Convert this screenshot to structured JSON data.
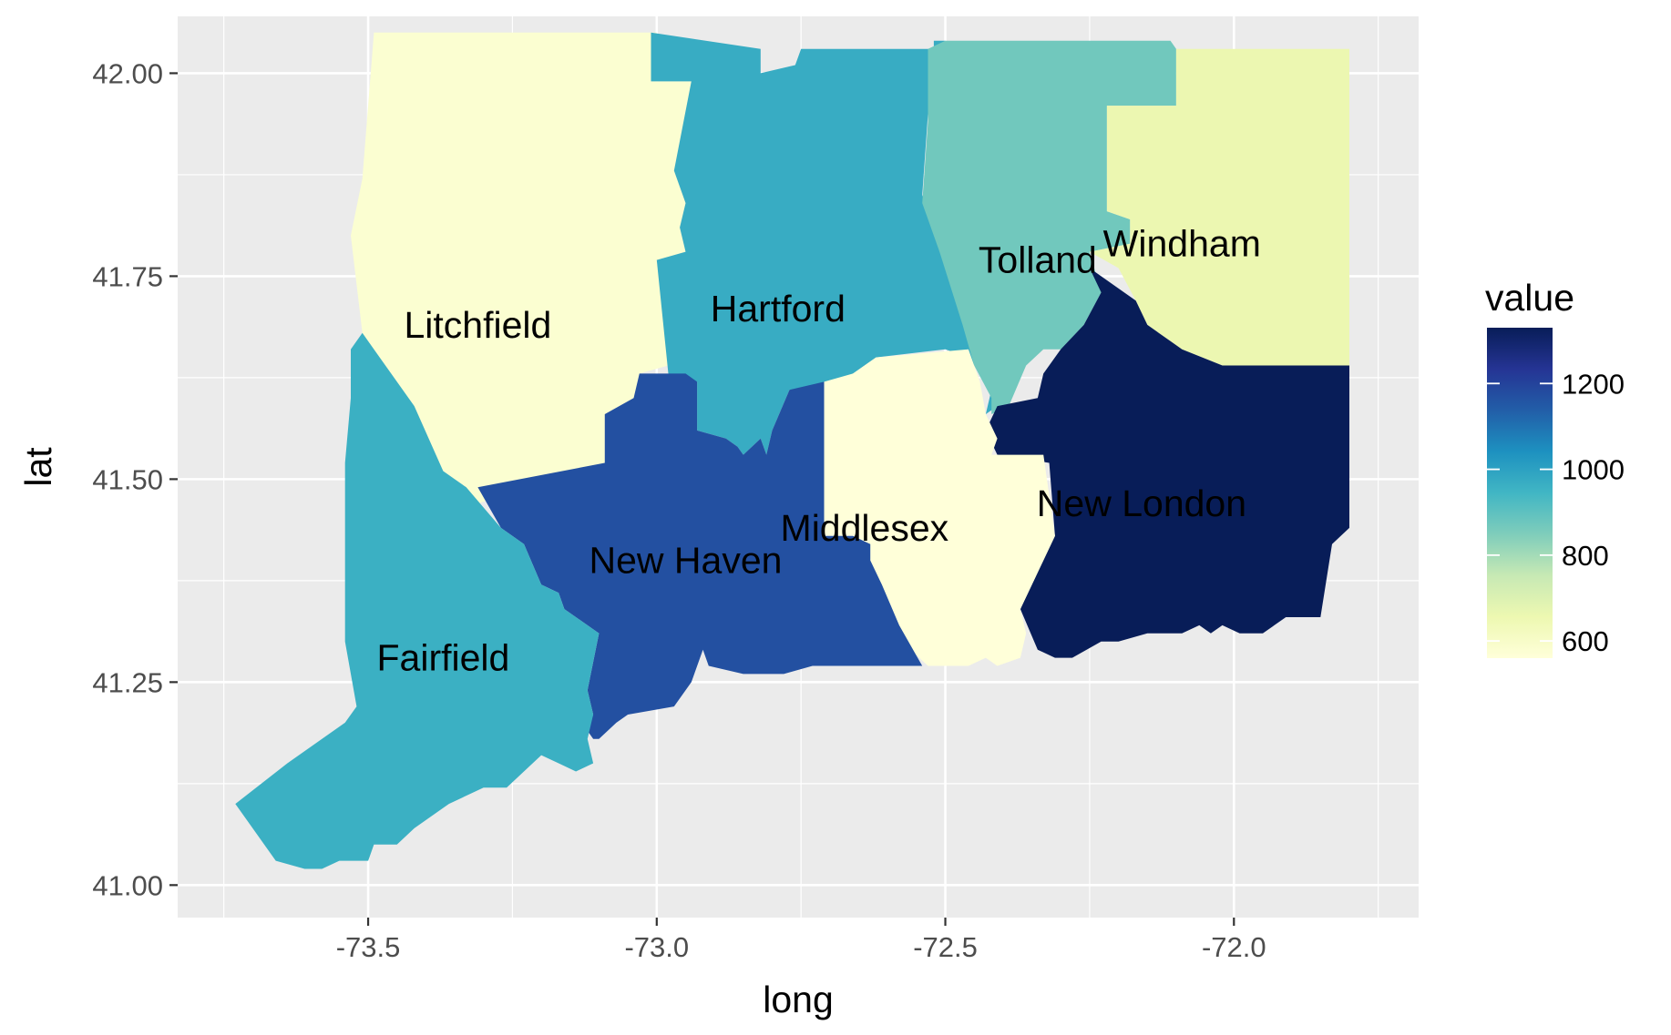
{
  "chart_data": {
    "type": "choropleth",
    "xlabel": "long",
    "ylabel": "lat",
    "xlim": [
      -73.83,
      -71.68
    ],
    "ylim": [
      40.96,
      42.07
    ],
    "x_ticks": [
      -73.5,
      -73.0,
      -72.5,
      -72.0
    ],
    "x_tick_labels": [
      "-73.5",
      "-73.0",
      "-72.5",
      "-72.0"
    ],
    "y_ticks": [
      41.0,
      41.25,
      41.5,
      41.75,
      42.0
    ],
    "y_tick_labels": [
      "41.00",
      "41.25",
      "41.50",
      "41.75",
      "42.00"
    ],
    "grid": true,
    "legend": {
      "title": "value",
      "position": "right",
      "range": [
        560,
        1330
      ],
      "ticks": [
        600,
        800,
        1000,
        1200
      ],
      "tick_labels": [
        "600",
        "800",
        "1000",
        "1200"
      ],
      "palette": [
        "#ffffd9",
        "#edf8b1",
        "#c7e9b4",
        "#7fcdbb",
        "#41b6c4",
        "#1d91c0",
        "#225ea8",
        "#253494",
        "#081d58"
      ]
    },
    "regions": [
      {
        "name": "Litchfield",
        "value": 580,
        "label_at": [
          -73.31,
          41.69
        ],
        "polygon": [
          [
            -73.49,
            42.05
          ],
          [
            -73.0,
            42.05
          ],
          [
            -73.01,
            41.99
          ],
          [
            -72.94,
            41.99
          ],
          [
            -72.97,
            41.88
          ],
          [
            -72.95,
            41.84
          ],
          [
            -72.96,
            41.81
          ],
          [
            -72.95,
            41.78
          ],
          [
            -73.0,
            41.77
          ],
          [
            -72.98,
            41.64
          ],
          [
            -73.03,
            41.63
          ],
          [
            -73.04,
            41.6
          ],
          [
            -73.09,
            41.58
          ],
          [
            -73.09,
            41.52
          ],
          [
            -73.31,
            41.47
          ],
          [
            -73.33,
            41.49
          ],
          [
            -73.37,
            41.51
          ],
          [
            -73.42,
            41.59
          ],
          [
            -73.48,
            41.65
          ],
          [
            -73.51,
            41.68
          ],
          [
            -73.53,
            41.8
          ],
          [
            -73.51,
            41.87
          ]
        ]
      },
      {
        "name": "Hartford",
        "value": 970,
        "label_at": [
          -72.79,
          41.71
        ],
        "polygon": [
          [
            -73.01,
            42.05
          ],
          [
            -72.82,
            42.03
          ],
          [
            -72.82,
            42.0
          ],
          [
            -72.76,
            42.01
          ],
          [
            -72.75,
            42.03
          ],
          [
            -72.61,
            42.03
          ],
          [
            -72.52,
            42.03
          ],
          [
            -72.52,
            42.04
          ],
          [
            -72.5,
            42.04
          ],
          [
            -72.5,
            42.03
          ],
          [
            -72.53,
            41.95
          ],
          [
            -72.54,
            41.85
          ],
          [
            -72.51,
            41.8
          ],
          [
            -72.47,
            41.7
          ],
          [
            -72.41,
            41.67
          ],
          [
            -72.41,
            41.62
          ],
          [
            -72.39,
            41.6
          ],
          [
            -72.43,
            41.58
          ],
          [
            -72.42,
            41.61
          ],
          [
            -72.43,
            41.63
          ],
          [
            -72.45,
            41.64
          ],
          [
            -72.46,
            41.65
          ],
          [
            -72.5,
            41.66
          ],
          [
            -72.62,
            41.65
          ],
          [
            -72.66,
            41.63
          ],
          [
            -72.72,
            41.61
          ],
          [
            -72.77,
            41.61
          ],
          [
            -72.8,
            41.56
          ],
          [
            -72.81,
            41.53
          ],
          [
            -72.82,
            41.55
          ],
          [
            -72.85,
            41.53
          ],
          [
            -72.86,
            41.54
          ],
          [
            -72.88,
            41.55
          ],
          [
            -72.93,
            41.56
          ],
          [
            -72.93,
            41.62
          ],
          [
            -72.98,
            41.63
          ],
          [
            -73.0,
            41.77
          ],
          [
            -72.95,
            41.78
          ],
          [
            -72.96,
            41.81
          ],
          [
            -72.95,
            41.84
          ],
          [
            -72.97,
            41.88
          ],
          [
            -72.94,
            41.99
          ],
          [
            -73.01,
            41.99
          ]
        ]
      },
      {
        "name": "Tolland",
        "value": 870,
        "label_at": [
          -72.34,
          41.77
        ],
        "polygon": [
          [
            -72.5,
            42.04
          ],
          [
            -72.11,
            42.04
          ],
          [
            -72.1,
            42.03
          ],
          [
            -72.1,
            41.96
          ],
          [
            -72.22,
            41.96
          ],
          [
            -72.22,
            41.83
          ],
          [
            -72.18,
            41.82
          ],
          [
            -72.18,
            41.79
          ],
          [
            -72.25,
            41.78
          ],
          [
            -72.23,
            41.73
          ],
          [
            -72.26,
            41.69
          ],
          [
            -72.3,
            41.66
          ],
          [
            -72.33,
            41.66
          ],
          [
            -72.36,
            41.64
          ],
          [
            -72.39,
            41.59
          ],
          [
            -72.42,
            41.58
          ],
          [
            -72.42,
            41.6
          ],
          [
            -72.45,
            41.64
          ],
          [
            -72.47,
            41.69
          ],
          [
            -72.51,
            41.78
          ],
          [
            -72.54,
            41.84
          ],
          [
            -72.53,
            41.94
          ],
          [
            -72.53,
            42.03
          ]
        ]
      },
      {
        "name": "Windham",
        "value": 660,
        "label_at": [
          -72.09,
          41.79
        ],
        "polygon": [
          [
            -72.1,
            42.03
          ],
          [
            -71.8,
            42.03
          ],
          [
            -71.8,
            41.99
          ],
          [
            -71.8,
            41.64
          ],
          [
            -71.8,
            41.64
          ],
          [
            -72.02,
            41.64
          ],
          [
            -72.09,
            41.66
          ],
          [
            -72.11,
            41.67
          ],
          [
            -72.15,
            41.69
          ],
          [
            -72.17,
            41.72
          ],
          [
            -72.2,
            41.76
          ],
          [
            -72.25,
            41.78
          ],
          [
            -72.18,
            41.79
          ],
          [
            -72.18,
            41.82
          ],
          [
            -72.22,
            41.83
          ],
          [
            -72.22,
            41.96
          ],
          [
            -72.1,
            41.96
          ]
        ]
      },
      {
        "name": "New London",
        "value": 1330,
        "label_at": [
          -72.16,
          41.47
        ],
        "polygon": [
          [
            -72.3,
            41.66
          ],
          [
            -72.26,
            41.69
          ],
          [
            -72.23,
            41.73
          ],
          [
            -72.25,
            41.76
          ],
          [
            -72.17,
            41.72
          ],
          [
            -72.15,
            41.69
          ],
          [
            -72.11,
            41.67
          ],
          [
            -72.09,
            41.66
          ],
          [
            -72.02,
            41.64
          ],
          [
            -71.8,
            41.64
          ],
          [
            -71.8,
            41.44
          ],
          [
            -71.83,
            41.42
          ],
          [
            -71.85,
            41.33
          ],
          [
            -71.91,
            41.33
          ],
          [
            -71.95,
            41.31
          ],
          [
            -71.99,
            41.31
          ],
          [
            -72.02,
            41.32
          ],
          [
            -72.04,
            41.31
          ],
          [
            -72.06,
            41.32
          ],
          [
            -72.09,
            41.31
          ],
          [
            -72.15,
            41.31
          ],
          [
            -72.2,
            41.3
          ],
          [
            -72.23,
            41.3
          ],
          [
            -72.28,
            41.28
          ],
          [
            -72.31,
            41.28
          ],
          [
            -72.34,
            41.29
          ],
          [
            -72.37,
            41.34
          ],
          [
            -72.31,
            41.43
          ],
          [
            -72.32,
            41.52
          ],
          [
            -72.41,
            41.53
          ],
          [
            -72.43,
            41.56
          ],
          [
            -72.41,
            41.59
          ],
          [
            -72.34,
            41.6
          ],
          [
            -72.33,
            41.63
          ]
        ]
      },
      {
        "name": "Middlesex",
        "value": 560,
        "label_at": [
          -72.64,
          41.44
        ],
        "polygon": [
          [
            -72.71,
            41.59
          ],
          [
            -72.71,
            41.62
          ],
          [
            -72.66,
            41.63
          ],
          [
            -72.62,
            41.65
          ],
          [
            -72.46,
            41.66
          ],
          [
            -72.44,
            41.62
          ],
          [
            -72.43,
            41.58
          ],
          [
            -72.41,
            41.55
          ],
          [
            -72.42,
            41.53
          ],
          [
            -72.33,
            41.53
          ],
          [
            -72.31,
            41.43
          ],
          [
            -72.37,
            41.34
          ],
          [
            -72.36,
            41.31
          ],
          [
            -72.37,
            41.28
          ],
          [
            -72.41,
            41.27
          ],
          [
            -72.43,
            41.28
          ],
          [
            -72.46,
            41.27
          ],
          [
            -72.53,
            41.27
          ],
          [
            -72.56,
            41.29
          ],
          [
            -72.58,
            41.32
          ],
          [
            -72.61,
            41.37
          ],
          [
            -72.63,
            41.4
          ],
          [
            -72.63,
            41.42
          ],
          [
            -72.66,
            41.43
          ],
          [
            -72.71,
            41.43
          ]
        ]
      },
      {
        "name": "New Haven",
        "value": 1170,
        "label_at": [
          -72.95,
          41.4
        ],
        "polygon": [
          [
            -73.31,
            41.49
          ],
          [
            -73.09,
            41.52
          ],
          [
            -73.09,
            41.58
          ],
          [
            -73.04,
            41.6
          ],
          [
            -73.03,
            41.63
          ],
          [
            -72.95,
            41.63
          ],
          [
            -72.93,
            41.62
          ],
          [
            -72.93,
            41.56
          ],
          [
            -72.88,
            41.55
          ],
          [
            -72.86,
            41.54
          ],
          [
            -72.85,
            41.53
          ],
          [
            -72.82,
            41.55
          ],
          [
            -72.81,
            41.53
          ],
          [
            -72.8,
            41.56
          ],
          [
            -72.77,
            41.61
          ],
          [
            -72.71,
            41.62
          ],
          [
            -72.71,
            41.43
          ],
          [
            -72.66,
            41.43
          ],
          [
            -72.63,
            41.42
          ],
          [
            -72.63,
            41.4
          ],
          [
            -72.61,
            41.37
          ],
          [
            -72.58,
            41.32
          ],
          [
            -72.54,
            41.27
          ],
          [
            -72.59,
            41.27
          ],
          [
            -72.65,
            41.27
          ],
          [
            -72.73,
            41.27
          ],
          [
            -72.78,
            41.26
          ],
          [
            -72.85,
            41.26
          ],
          [
            -72.91,
            41.27
          ],
          [
            -72.92,
            41.29
          ],
          [
            -72.94,
            41.25
          ],
          [
            -72.97,
            41.22
          ],
          [
            -73.05,
            41.21
          ],
          [
            -73.07,
            41.2
          ],
          [
            -73.1,
            41.18
          ],
          [
            -73.11,
            41.18
          ],
          [
            -73.12,
            41.19
          ],
          [
            -73.11,
            41.21
          ],
          [
            -73.12,
            41.24
          ],
          [
            -73.1,
            41.31
          ],
          [
            -73.16,
            41.34
          ],
          [
            -73.17,
            41.36
          ],
          [
            -73.2,
            41.37
          ],
          [
            -73.23,
            41.42
          ],
          [
            -73.27,
            41.44
          ]
        ]
      },
      {
        "name": "Fairfield",
        "value": 960,
        "label_at": [
          -73.37,
          41.28
        ],
        "polygon": [
          [
            -73.51,
            41.68
          ],
          [
            -73.48,
            41.65
          ],
          [
            -73.42,
            41.59
          ],
          [
            -73.37,
            41.51
          ],
          [
            -73.33,
            41.49
          ],
          [
            -73.27,
            41.44
          ],
          [
            -73.23,
            41.42
          ],
          [
            -73.2,
            41.37
          ],
          [
            -73.17,
            41.36
          ],
          [
            -73.16,
            41.34
          ],
          [
            -73.1,
            41.31
          ],
          [
            -73.12,
            41.24
          ],
          [
            -73.11,
            41.21
          ],
          [
            -73.12,
            41.18
          ],
          [
            -73.11,
            41.15
          ],
          [
            -73.14,
            41.14
          ],
          [
            -73.17,
            41.15
          ],
          [
            -73.2,
            41.16
          ],
          [
            -73.26,
            41.12
          ],
          [
            -73.3,
            41.12
          ],
          [
            -73.36,
            41.1
          ],
          [
            -73.42,
            41.07
          ],
          [
            -73.45,
            41.05
          ],
          [
            -73.49,
            41.05
          ],
          [
            -73.5,
            41.03
          ],
          [
            -73.55,
            41.03
          ],
          [
            -73.58,
            41.02
          ],
          [
            -73.61,
            41.02
          ],
          [
            -73.66,
            41.03
          ],
          [
            -73.73,
            41.1
          ],
          [
            -73.64,
            41.15
          ],
          [
            -73.54,
            41.2
          ],
          [
            -73.52,
            41.22
          ],
          [
            -73.54,
            41.3
          ],
          [
            -73.54,
            41.52
          ],
          [
            -73.53,
            41.6
          ],
          [
            -73.53,
            41.66
          ],
          [
            -73.51,
            41.68
          ]
        ]
      }
    ]
  }
}
